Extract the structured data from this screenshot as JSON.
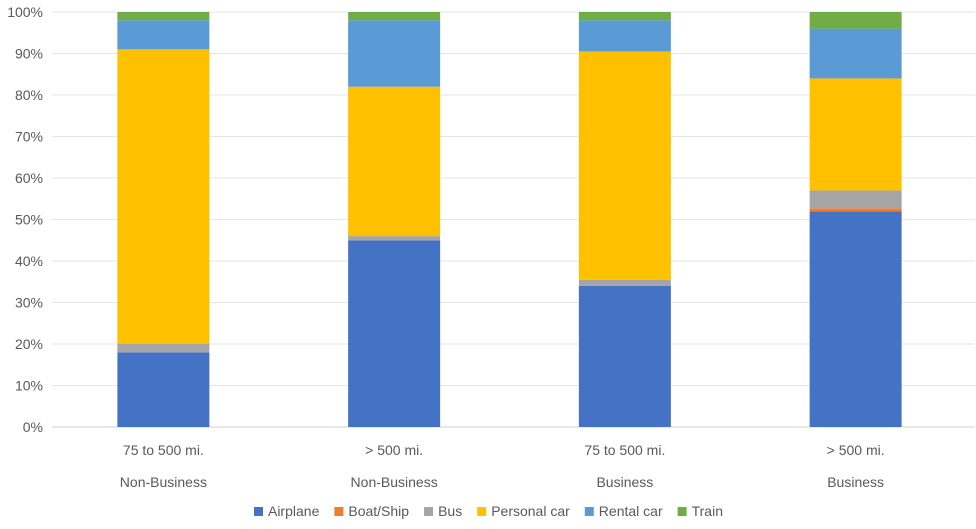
{
  "chart_data": {
    "type": "bar",
    "stacked": true,
    "categories": [
      {
        "line1": "75 to 500 mi.",
        "line2": "Non-Business"
      },
      {
        "line1": "> 500 mi.",
        "line2": "Non-Business"
      },
      {
        "line1": "75 to 500 mi.",
        "line2": "Business"
      },
      {
        "line1": "> 500 mi.",
        "line2": "Business"
      }
    ],
    "series": [
      {
        "name": "Airplane",
        "color": "#4472C4",
        "values": [
          18,
          45,
          34,
          52
        ]
      },
      {
        "name": "Boat/Ship",
        "color": "#ED7D31",
        "values": [
          0,
          0,
          0,
          0.7
        ]
      },
      {
        "name": "Bus",
        "color": "#A5A5A5",
        "values": [
          2,
          1,
          1.5,
          4.3
        ]
      },
      {
        "name": "Personal car",
        "color": "#FFC000",
        "values": [
          71,
          36,
          55,
          27
        ]
      },
      {
        "name": "Rental car",
        "color": "#5B9BD5",
        "values": [
          7,
          16,
          7.5,
          12
        ]
      },
      {
        "name": "Train",
        "color": "#70AD47",
        "values": [
          2,
          2,
          2,
          4
        ]
      }
    ],
    "ylim": [
      0,
      100
    ],
    "yticks": [
      "0%",
      "10%",
      "20%",
      "30%",
      "40%",
      "50%",
      "60%",
      "70%",
      "80%",
      "90%",
      "100%"
    ],
    "grid": true,
    "legend_position": "bottom"
  }
}
